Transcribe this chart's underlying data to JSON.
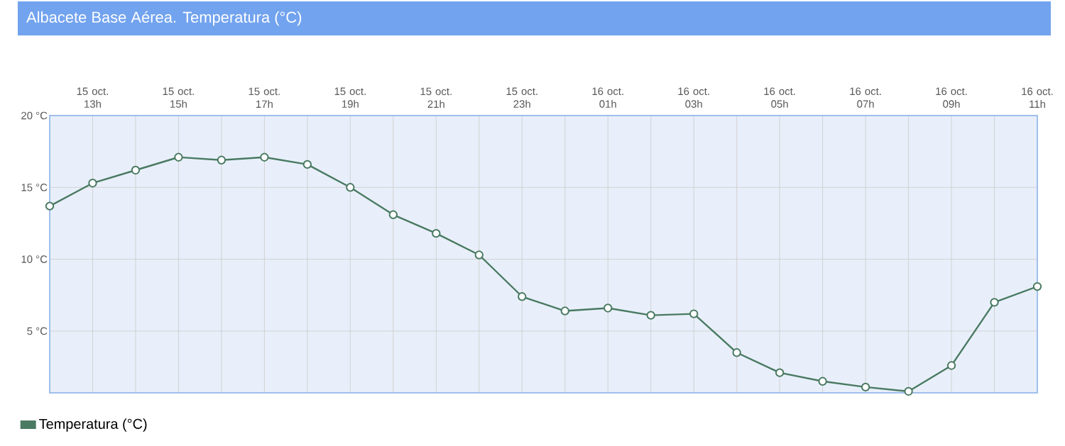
{
  "chart_data": {
    "type": "line",
    "title": "Albacete Base Aérea. Temperatura (°C)",
    "categories": [
      null,
      "15 oct. 13h",
      null,
      "15 oct. 15h",
      null,
      "15 oct. 17h",
      null,
      "15 oct. 19h",
      null,
      "15 oct. 21h",
      null,
      "15 oct. 23h",
      null,
      "16 oct. 01h",
      null,
      "16 oct. 03h",
      null,
      "16 oct. 05h",
      null,
      "16 oct. 07h",
      null,
      "16 oct. 09h",
      null,
      "16 oct. 11h"
    ],
    "series": [
      {
        "name": "Temperatura (°C)",
        "color": "#4a7a62",
        "values": [
          13.7,
          15.3,
          16.2,
          17.1,
          16.9,
          17.1,
          16.6,
          15.0,
          13.1,
          11.8,
          10.3,
          7.4,
          6.4,
          6.6,
          6.1,
          6.2,
          3.5,
          2.1,
          1.5,
          1.1,
          0.8,
          2.6,
          7.0,
          8.1
        ]
      }
    ],
    "ylim": [
      0.7,
      20
    ],
    "yticks": [
      {
        "value": 5,
        "label": "5 °C"
      },
      {
        "value": 10,
        "label": "10 °C"
      },
      {
        "value": 15,
        "label": "15 °C"
      },
      {
        "value": 20,
        "label": "20 °C"
      }
    ],
    "grid": true,
    "legend": "bottom left",
    "marker": "circle"
  }
}
